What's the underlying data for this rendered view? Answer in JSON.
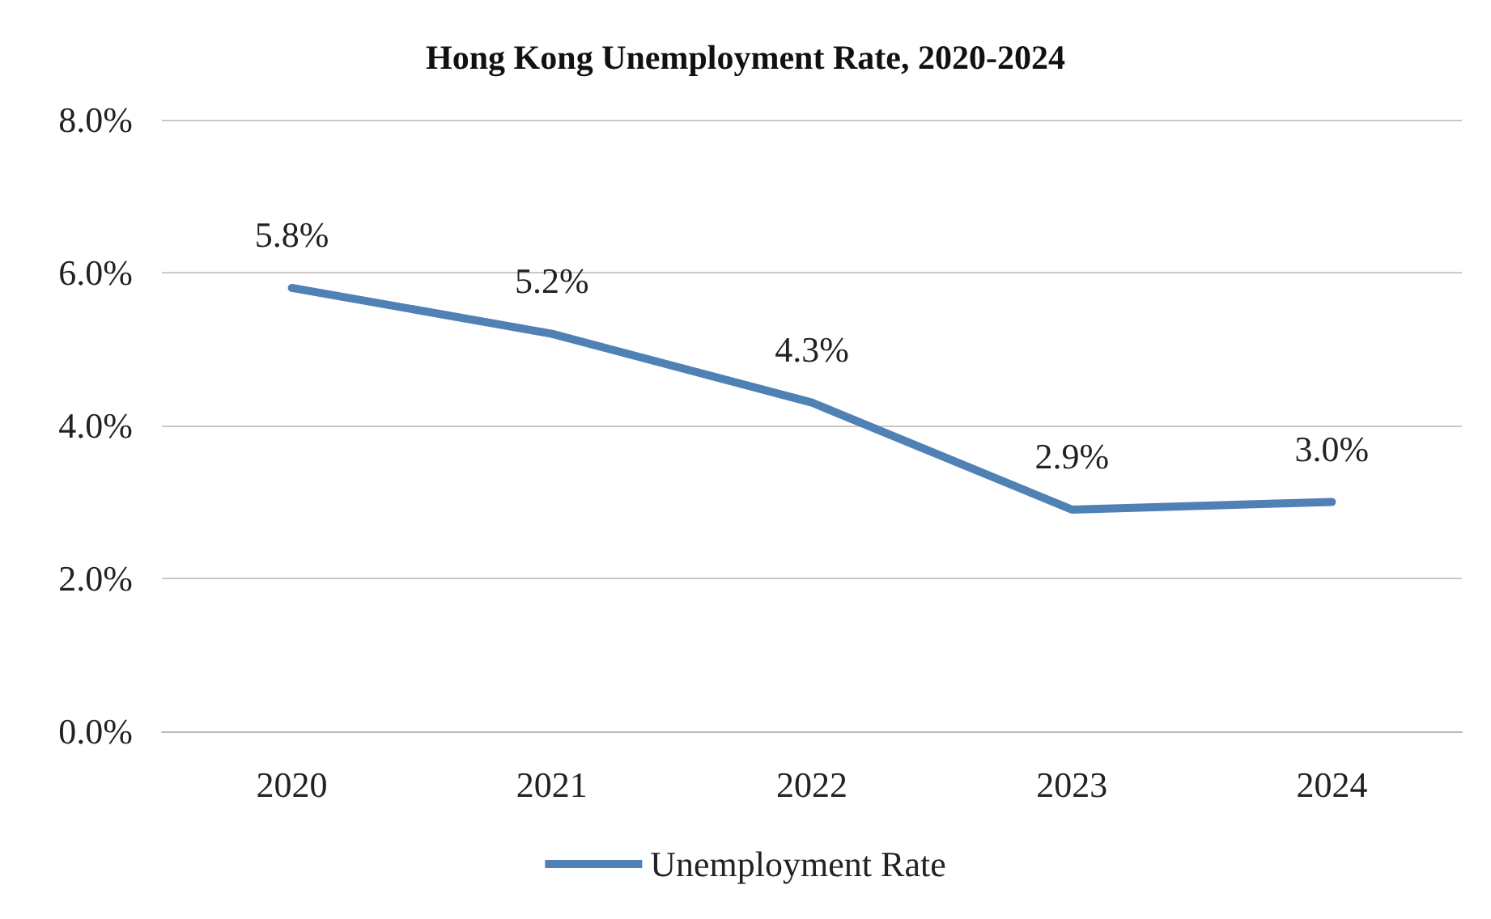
{
  "chart_data": {
    "type": "line",
    "title": "Hong Kong Unemployment Rate, 2020-2024",
    "categories": [
      "2020",
      "2021",
      "2022",
      "2023",
      "2024"
    ],
    "series": [
      {
        "name": "Unemployment Rate",
        "color": "#4f81b5",
        "values": [
          5.8,
          5.2,
          4.3,
          2.9,
          3.0
        ],
        "value_labels": [
          "5.8%",
          "5.2%",
          "4.3%",
          "2.9%",
          "3.0%"
        ]
      }
    ],
    "ylim": [
      0,
      8
    ],
    "yticks": [
      {
        "value": 0,
        "label": "0.0%"
      },
      {
        "value": 2,
        "label": "2.0%"
      },
      {
        "value": 4,
        "label": "4.0%"
      },
      {
        "value": 6,
        "label": "6.0%"
      },
      {
        "value": 8,
        "label": "8.0%"
      }
    ],
    "grid": "y",
    "legend": "bottom",
    "marker": "none",
    "line_style": "solid"
  }
}
